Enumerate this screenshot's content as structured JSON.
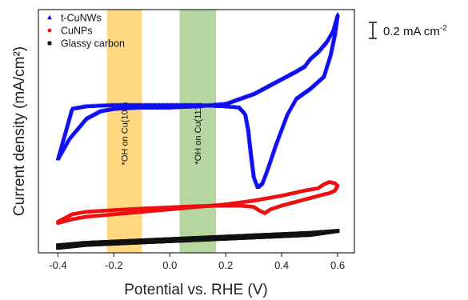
{
  "chart_data": {
    "type": "line",
    "xlabel": "Potential vs. RHE (V)",
    "ylabel": "Current density (mA/cm²)",
    "xlim": [
      -0.47,
      0.66
    ],
    "y_ticks_shown": false,
    "x_ticks": [
      -0.4,
      -0.2,
      0.0,
      0.2,
      0.4,
      0.6
    ],
    "x_tick_labels": [
      "-0.4",
      "-0.2",
      "0.0",
      "0.2",
      "0.4",
      "0.6"
    ],
    "scale_bar": {
      "label_main": "0.2 mA cm",
      "label_sup": "-2"
    },
    "bands": [
      {
        "label": "*OH on Cu(100)",
        "x_range": [
          -0.225,
          -0.1
        ],
        "color": "#ffd16b"
      },
      {
        "label": "*OH on Cu(111)",
        "x_range": [
          0.035,
          0.165
        ],
        "color": "#a9cf8f"
      }
    ],
    "legend": {
      "placement": "top-left"
    },
    "series": [
      {
        "name": "t-CuNWs",
        "marker": "triangle",
        "color": "#1010ee",
        "forward": [
          [
            -0.4,
            0.46
          ],
          [
            -0.36,
            0.54
          ],
          [
            -0.3,
            0.62
          ],
          [
            -0.25,
            0.65
          ],
          [
            -0.2,
            0.66
          ],
          [
            -0.1,
            0.665
          ],
          [
            0.0,
            0.665
          ],
          [
            0.1,
            0.67
          ],
          [
            0.2,
            0.68
          ],
          [
            0.3,
            0.72
          ],
          [
            0.35,
            0.75
          ],
          [
            0.4,
            0.78
          ],
          [
            0.45,
            0.81
          ],
          [
            0.48,
            0.83
          ],
          [
            0.5,
            0.86
          ],
          [
            0.53,
            0.89
          ],
          [
            0.56,
            0.93
          ],
          [
            0.585,
            0.98
          ],
          [
            0.6,
            1.04
          ]
        ],
        "reverse": [
          [
            0.6,
            1.04
          ],
          [
            0.59,
            0.96
          ],
          [
            0.575,
            0.88
          ],
          [
            0.55,
            0.79
          ],
          [
            0.52,
            0.76
          ],
          [
            0.5,
            0.74
          ],
          [
            0.45,
            0.7
          ],
          [
            0.42,
            0.64
          ],
          [
            0.38,
            0.52
          ],
          [
            0.35,
            0.42
          ],
          [
            0.33,
            0.36
          ],
          [
            0.315,
            0.345
          ],
          [
            0.3,
            0.39
          ],
          [
            0.29,
            0.48
          ],
          [
            0.28,
            0.58
          ],
          [
            0.27,
            0.64
          ],
          [
            0.25,
            0.665
          ],
          [
            0.2,
            0.67
          ],
          [
            0.1,
            0.675
          ],
          [
            0.0,
            0.675
          ],
          [
            -0.1,
            0.675
          ],
          [
            -0.2,
            0.675
          ],
          [
            -0.3,
            0.67
          ],
          [
            -0.35,
            0.66
          ],
          [
            -0.4,
            0.46
          ]
        ]
      },
      {
        "name": "CuNPs",
        "marker": "circle",
        "color": "#ee1010",
        "forward": [
          [
            -0.4,
            0.2
          ],
          [
            -0.35,
            0.215
          ],
          [
            -0.3,
            0.225
          ],
          [
            -0.2,
            0.235
          ],
          [
            -0.1,
            0.245
          ],
          [
            0.0,
            0.255
          ],
          [
            0.1,
            0.265
          ],
          [
            0.2,
            0.275
          ],
          [
            0.3,
            0.29
          ],
          [
            0.4,
            0.31
          ],
          [
            0.48,
            0.33
          ],
          [
            0.53,
            0.34
          ],
          [
            0.55,
            0.355
          ],
          [
            0.57,
            0.365
          ],
          [
            0.59,
            0.36
          ],
          [
            0.6,
            0.35
          ]
        ],
        "reverse": [
          [
            0.6,
            0.35
          ],
          [
            0.59,
            0.33
          ],
          [
            0.57,
            0.32
          ],
          [
            0.55,
            0.315
          ],
          [
            0.5,
            0.3
          ],
          [
            0.45,
            0.285
          ],
          [
            0.4,
            0.27
          ],
          [
            0.36,
            0.255
          ],
          [
            0.34,
            0.24
          ],
          [
            0.32,
            0.25
          ],
          [
            0.3,
            0.265
          ],
          [
            0.25,
            0.27
          ],
          [
            0.2,
            0.27
          ],
          [
            0.1,
            0.268
          ],
          [
            0.0,
            0.263
          ],
          [
            -0.1,
            0.258
          ],
          [
            -0.2,
            0.252
          ],
          [
            -0.3,
            0.245
          ],
          [
            -0.35,
            0.235
          ],
          [
            -0.4,
            0.205
          ]
        ]
      },
      {
        "name": "Glassy carbon",
        "marker": "square",
        "color": "#111111",
        "forward": [
          [
            -0.4,
            0.11
          ],
          [
            -0.3,
            0.12
          ],
          [
            -0.2,
            0.125
          ],
          [
            -0.1,
            0.13
          ],
          [
            0.0,
            0.135
          ],
          [
            0.1,
            0.14
          ],
          [
            0.2,
            0.145
          ],
          [
            0.3,
            0.15
          ],
          [
            0.4,
            0.155
          ],
          [
            0.5,
            0.16
          ],
          [
            0.6,
            0.168
          ]
        ],
        "reverse": [
          [
            0.6,
            0.168
          ],
          [
            0.5,
            0.152
          ],
          [
            0.4,
            0.147
          ],
          [
            0.3,
            0.142
          ],
          [
            0.2,
            0.137
          ],
          [
            0.1,
            0.132
          ],
          [
            0.0,
            0.127
          ],
          [
            -0.1,
            0.122
          ],
          [
            -0.2,
            0.117
          ],
          [
            -0.3,
            0.112
          ],
          [
            -0.4,
            0.1
          ]
        ]
      }
    ]
  }
}
